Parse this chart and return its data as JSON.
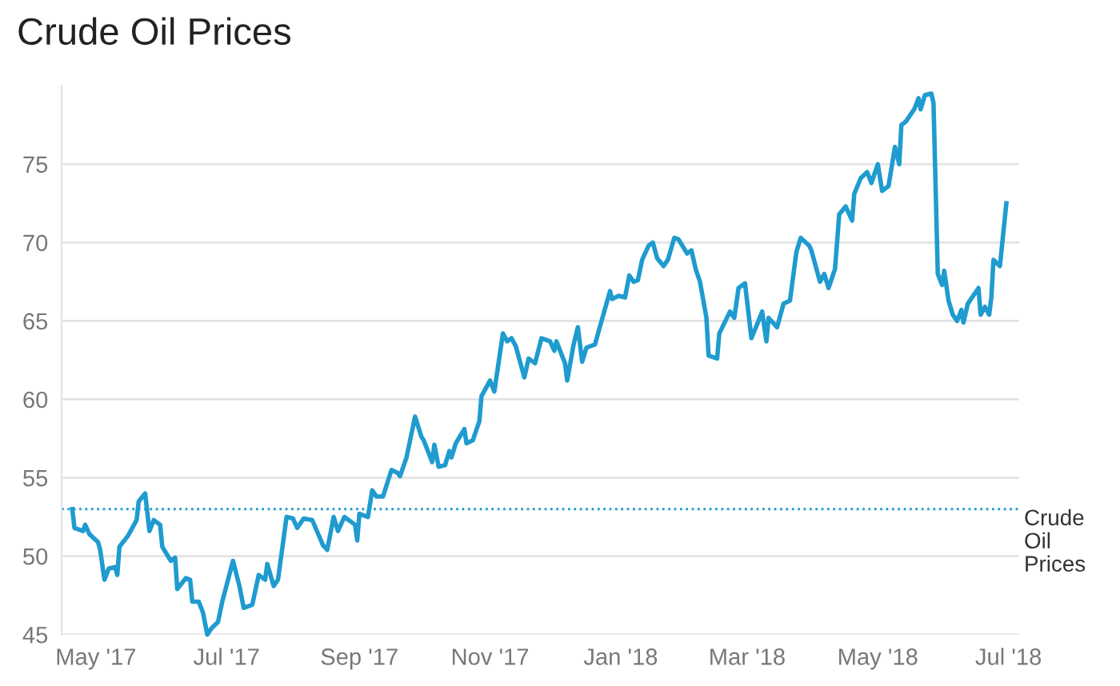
{
  "chart_data": {
    "type": "line",
    "title": "Crude Oil Prices",
    "x": [
      "2017-04-20",
      "2017-04-21",
      "2017-04-25",
      "2017-04-26",
      "2017-04-28",
      "2017-05-02",
      "2017-05-03",
      "2017-05-05",
      "2017-05-07",
      "2017-05-10",
      "2017-05-11",
      "2017-05-12",
      "2017-05-16",
      "2017-05-20",
      "2017-05-21",
      "2017-05-24",
      "2017-05-26",
      "2017-05-28",
      "2017-05-31",
      "2017-06-01",
      "2017-06-05",
      "2017-06-07",
      "2017-06-08",
      "2017-06-12",
      "2017-06-14",
      "2017-06-15",
      "2017-06-18",
      "2017-06-20",
      "2017-06-22",
      "2017-06-24",
      "2017-06-27",
      "2017-06-29",
      "2017-07-04",
      "2017-07-07",
      "2017-07-09",
      "2017-07-13",
      "2017-07-16",
      "2017-07-19",
      "2017-07-20",
      "2017-07-23",
      "2017-07-25",
      "2017-07-29",
      "2017-08-01",
      "2017-08-03",
      "2017-08-06",
      "2017-08-10",
      "2017-08-15",
      "2017-08-17",
      "2017-08-20",
      "2017-08-22",
      "2017-08-25",
      "2017-08-30",
      "2017-08-31",
      "2017-09-01",
      "2017-09-05",
      "2017-09-07",
      "2017-09-09",
      "2017-09-12",
      "2017-09-16",
      "2017-09-19",
      "2017-09-20",
      "2017-09-23",
      "2017-09-27",
      "2017-09-30",
      "2017-10-01",
      "2017-10-05",
      "2017-10-06",
      "2017-10-08",
      "2017-10-11",
      "2017-10-13",
      "2017-10-14",
      "2017-10-16",
      "2017-10-20",
      "2017-10-21",
      "2017-10-24",
      "2017-10-27",
      "2017-10-28",
      "2017-11-01",
      "2017-11-03",
      "2017-11-07",
      "2017-11-09",
      "2017-11-11",
      "2017-11-13",
      "2017-11-17",
      "2017-11-19",
      "2017-11-22",
      "2017-11-25",
      "2017-11-29",
      "2017-12-01",
      "2017-12-02",
      "2017-12-06",
      "2017-12-07",
      "2017-12-10",
      "2017-12-12",
      "2017-12-14",
      "2017-12-16",
      "2017-12-20",
      "2017-12-22",
      "2017-12-27",
      "2017-12-28",
      "2017-12-31",
      "2018-01-03",
      "2018-01-05",
      "2018-01-07",
      "2018-01-09",
      "2018-01-11",
      "2018-01-14",
      "2018-01-16",
      "2018-01-18",
      "2018-01-21",
      "2018-01-23",
      "2018-01-26",
      "2018-01-28",
      "2018-02-01",
      "2018-02-03",
      "2018-02-05",
      "2018-02-07",
      "2018-02-10",
      "2018-02-11",
      "2018-02-15",
      "2018-02-16",
      "2018-02-21",
      "2018-02-23",
      "2018-02-25",
      "2018-02-28",
      "2018-03-03",
      "2018-03-06",
      "2018-03-08",
      "2018-03-10",
      "2018-03-11",
      "2018-03-15",
      "2018-03-18",
      "2018-03-21",
      "2018-03-24",
      "2018-03-26",
      "2018-03-30",
      "2018-03-31",
      "2018-04-04",
      "2018-04-06",
      "2018-04-08",
      "2018-04-11",
      "2018-04-13",
      "2018-04-16",
      "2018-04-19",
      "2018-04-20",
      "2018-04-23",
      "2018-04-26",
      "2018-04-28",
      "2018-05-01",
      "2018-05-03",
      "2018-05-06",
      "2018-05-09",
      "2018-05-11",
      "2018-05-12",
      "2018-05-14",
      "2018-05-18",
      "2018-05-20",
      "2018-05-21",
      "2018-05-23",
      "2018-05-26",
      "2018-05-27",
      "2018-05-29",
      "2018-05-31",
      "2018-06-01",
      "2018-06-03",
      "2018-06-05",
      "2018-06-07",
      "2018-06-09",
      "2018-06-10",
      "2018-06-12",
      "2018-06-17",
      "2018-06-18",
      "2018-06-20",
      "2018-06-22",
      "2018-06-23",
      "2018-06-24",
      "2018-06-27",
      "2018-06-30"
    ],
    "series": [
      {
        "color": "#1f9bcf",
        "values": [
          53.0,
          51.8,
          51.6,
          52.0,
          51.4,
          50.9,
          50.4,
          48.5,
          49.2,
          49.3,
          48.8,
          50.6,
          51.3,
          52.3,
          53.5,
          54.0,
          51.6,
          52.3,
          52.0,
          50.6,
          49.7,
          49.9,
          47.9,
          48.6,
          48.5,
          47.1,
          47.1,
          46.4,
          45.0,
          45.4,
          45.8,
          47.1,
          49.7,
          48.1,
          46.7,
          46.9,
          48.8,
          48.5,
          49.5,
          48.1,
          48.5,
          52.5,
          52.4,
          51.8,
          52.4,
          52.3,
          50.7,
          50.4,
          52.5,
          51.6,
          52.5,
          52.0,
          51.0,
          52.7,
          52.5,
          54.2,
          53.8,
          53.8,
          55.5,
          55.3,
          55.1,
          56.3,
          58.9,
          57.6,
          57.4,
          56.0,
          57.1,
          55.7,
          55.8,
          56.7,
          56.3,
          57.2,
          58.1,
          57.2,
          57.4,
          58.6,
          60.2,
          61.2,
          60.5,
          64.2,
          63.7,
          63.9,
          63.4,
          61.4,
          62.6,
          62.3,
          63.9,
          63.7,
          63.1,
          63.7,
          62.3,
          61.2,
          63.5,
          64.6,
          62.4,
          63.3,
          63.5,
          64.5,
          66.9,
          66.4,
          66.6,
          66.5,
          67.9,
          67.5,
          67.6,
          68.9,
          69.8,
          70.0,
          69.0,
          68.5,
          68.9,
          70.3,
          70.2,
          69.3,
          69.5,
          68.3,
          67.5,
          65.2,
          62.8,
          62.6,
          64.2,
          65.6,
          65.2,
          67.1,
          67.4,
          63.9,
          64.9,
          65.6,
          63.7,
          65.2,
          64.6,
          66.1,
          66.3,
          69.4,
          70.3,
          69.8,
          69.5,
          67.5,
          68.0,
          67.1,
          68.3,
          71.8,
          72.3,
          71.4,
          73.1,
          74.1,
          74.5,
          73.8,
          75.0,
          73.3,
          73.6,
          76.1,
          75.0,
          77.5,
          77.7,
          78.5,
          79.2,
          78.5,
          79.4,
          79.5,
          78.9,
          68.0,
          67.3,
          68.2,
          66.3,
          65.4,
          65.0,
          65.7,
          64.9,
          66.1,
          67.1,
          65.4,
          65.9,
          65.4,
          66.5,
          68.9,
          68.5,
          72.5
        ]
      }
    ],
    "xlim": [
      "2017-04-15",
      "2018-07-06"
    ],
    "xticks": [
      {
        "value": "2017-05-01",
        "label": "May '17"
      },
      {
        "value": "2017-07-01",
        "label": "Jul '17"
      },
      {
        "value": "2017-09-01",
        "label": "Sep '17"
      },
      {
        "value": "2017-11-01",
        "label": "Nov '17"
      },
      {
        "value": "2018-01-01",
        "label": "Jan '18"
      },
      {
        "value": "2018-03-01",
        "label": "Mar '18"
      },
      {
        "value": "2018-05-01",
        "label": "May '18"
      },
      {
        "value": "2018-07-01",
        "label": "Jul '18"
      }
    ],
    "ylim": [
      45,
      80
    ],
    "yticks": [
      45,
      50,
      55,
      60,
      65,
      70,
      75
    ],
    "ref_lines": [
      {
        "axis": "y",
        "value": 53,
        "label": "Crude Oil Prices",
        "color": "#1f9bcf",
        "line_style": "dotted"
      }
    ],
    "grid": "y"
  }
}
